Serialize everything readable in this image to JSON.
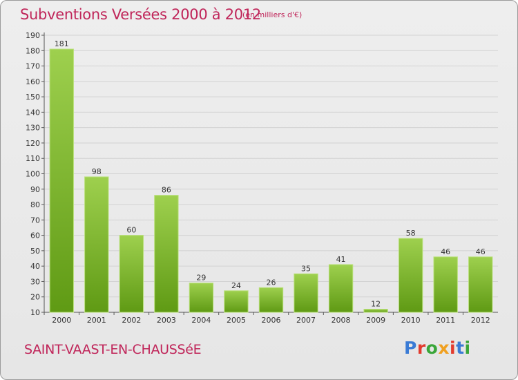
{
  "header": {
    "title": "Subventions Versées 2000 à 2012",
    "unit_note": "(en milliers d'€)"
  },
  "footer": {
    "commune": "SAINT-VAAST-EN-CHAUSSéE",
    "brand": "Proxiti"
  },
  "colors": {
    "title": "#c0265a",
    "bar_light": "#9ed04e",
    "bar_dark": "#5f9a14",
    "brand_letters": [
      "#3a7bd5",
      "#e23b2e",
      "#3aa63a",
      "#f0a020",
      "#e23b2e",
      "#3a7bd5",
      "#3aa63a"
    ]
  },
  "chart_data": {
    "type": "bar",
    "title": "Subventions Versées 2000 à 2012",
    "subtitle": "(en milliers d'€)",
    "categories": [
      "2000",
      "2001",
      "2002",
      "2003",
      "2004",
      "2005",
      "2006",
      "2007",
      "2008",
      "2009",
      "2010",
      "2011",
      "2012"
    ],
    "values": [
      181,
      98,
      60,
      86,
      29,
      24,
      26,
      35,
      41,
      12,
      58,
      46,
      46
    ],
    "ylim": [
      10,
      190
    ],
    "yticks": [
      10,
      20,
      30,
      40,
      50,
      60,
      70,
      80,
      90,
      100,
      110,
      120,
      130,
      140,
      150,
      160,
      170,
      180,
      190
    ],
    "grid": true,
    "xlabel": "",
    "ylabel": ""
  }
}
